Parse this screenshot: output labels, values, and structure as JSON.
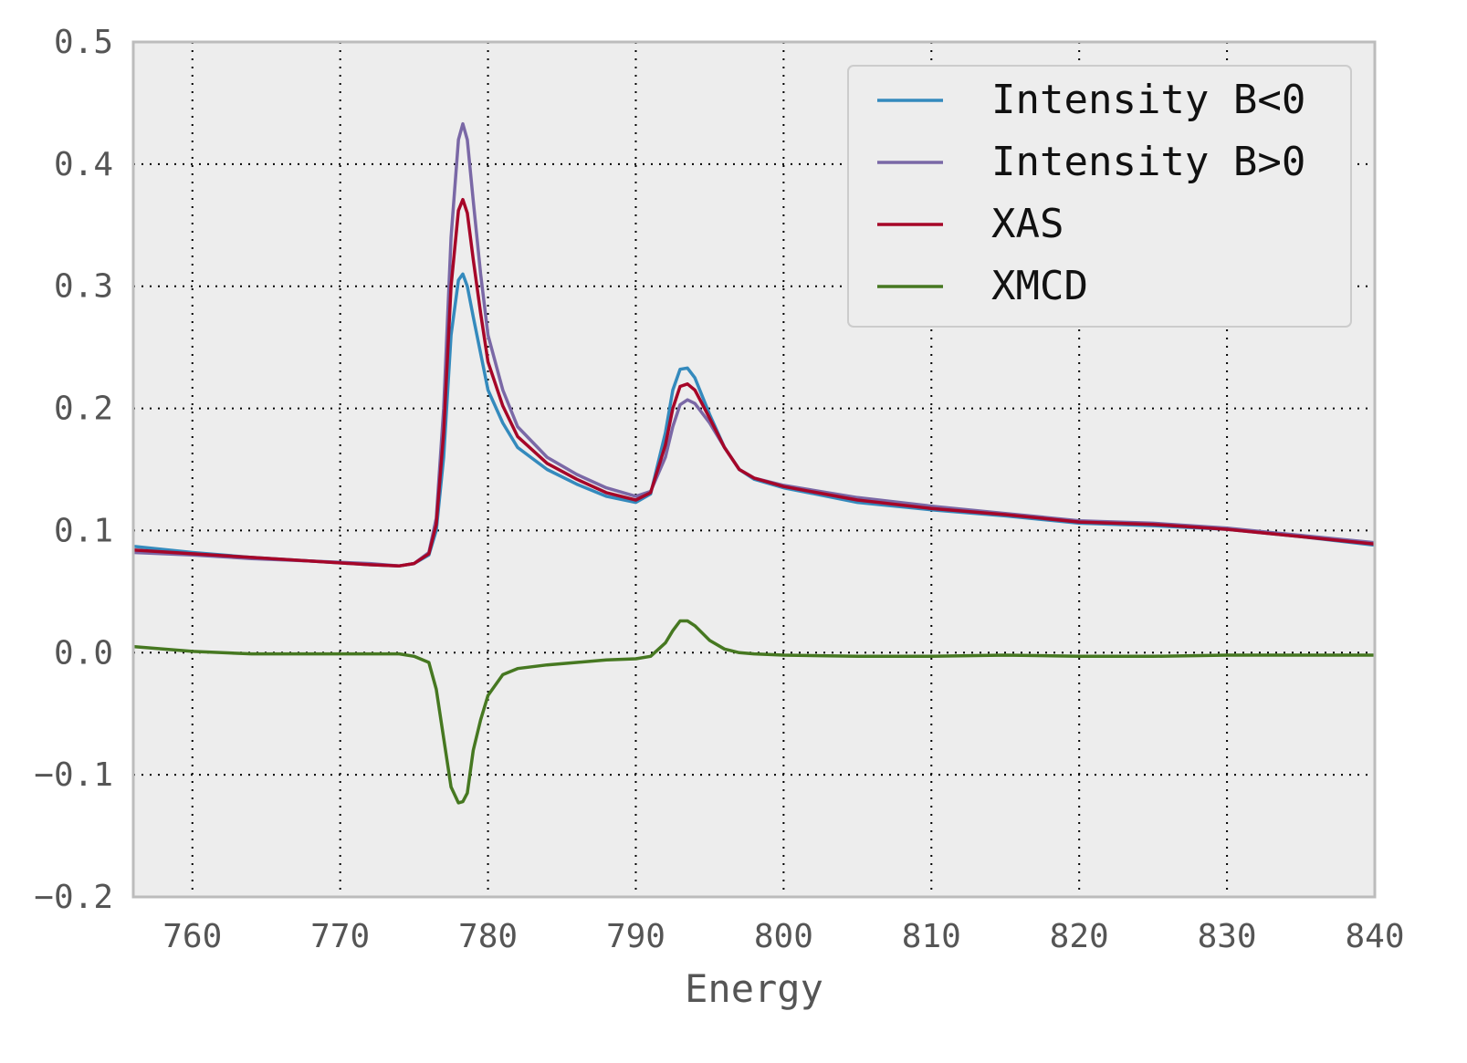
{
  "chart_data": {
    "type": "line",
    "title": "",
    "xlabel": "Energy",
    "ylabel": "",
    "xlim": [
      756,
      840
    ],
    "ylim": [
      -0.2,
      0.5
    ],
    "xticks": [
      760,
      770,
      780,
      790,
      800,
      810,
      820,
      830,
      840
    ],
    "yticks": [
      -0.2,
      -0.1,
      0.0,
      0.1,
      0.2,
      0.3,
      0.4,
      0.5
    ],
    "xtick_labels": [
      "760",
      "770",
      "780",
      "790",
      "800",
      "810",
      "820",
      "830",
      "840"
    ],
    "ytick_labels": [
      "−0.2",
      "−0.1",
      "0.0",
      "0.1",
      "0.2",
      "0.3",
      "0.4",
      "0.5"
    ],
    "grid": true,
    "legend_position": "top-right",
    "background": "#ededed",
    "x": [
      756,
      760,
      764,
      768,
      772,
      774,
      775,
      776,
      776.5,
      777,
      777.5,
      778,
      778.3,
      778.6,
      779,
      779.5,
      780,
      781,
      782,
      784,
      786,
      788,
      790,
      791,
      792,
      792.5,
      793,
      793.5,
      794,
      795,
      796,
      797,
      798,
      800,
      805,
      810,
      815,
      820,
      825,
      830,
      835,
      840
    ],
    "series": [
      {
        "name": "Intensity B<0",
        "color": "#348abd",
        "values": [
          0.087,
          0.082,
          0.078,
          0.075,
          0.072,
          0.071,
          0.073,
          0.08,
          0.1,
          0.16,
          0.26,
          0.305,
          0.31,
          0.3,
          0.275,
          0.245,
          0.215,
          0.188,
          0.168,
          0.15,
          0.138,
          0.128,
          0.123,
          0.13,
          0.18,
          0.215,
          0.232,
          0.233,
          0.225,
          0.195,
          0.168,
          0.15,
          0.142,
          0.135,
          0.123,
          0.117,
          0.112,
          0.106,
          0.104,
          0.101,
          0.095,
          0.088
        ]
      },
      {
        "name": "Intensity B>0",
        "color": "#7a68a6",
        "values": [
          0.082,
          0.08,
          0.077,
          0.075,
          0.073,
          0.071,
          0.073,
          0.082,
          0.11,
          0.2,
          0.34,
          0.42,
          0.433,
          0.42,
          0.37,
          0.31,
          0.26,
          0.215,
          0.185,
          0.16,
          0.146,
          0.135,
          0.128,
          0.132,
          0.16,
          0.185,
          0.203,
          0.207,
          0.204,
          0.188,
          0.168,
          0.15,
          0.143,
          0.137,
          0.127,
          0.12,
          0.114,
          0.108,
          0.106,
          0.102,
          0.096,
          0.09
        ]
      },
      {
        "name": "XAS",
        "color": "#a60628",
        "values": [
          0.084,
          0.081,
          0.078,
          0.075,
          0.072,
          0.071,
          0.073,
          0.081,
          0.105,
          0.18,
          0.3,
          0.362,
          0.371,
          0.36,
          0.322,
          0.278,
          0.238,
          0.202,
          0.177,
          0.155,
          0.142,
          0.131,
          0.125,
          0.131,
          0.17,
          0.2,
          0.218,
          0.22,
          0.215,
          0.192,
          0.168,
          0.15,
          0.143,
          0.136,
          0.125,
          0.118,
          0.113,
          0.107,
          0.105,
          0.101,
          0.095,
          0.089
        ]
      },
      {
        "name": "XMCD",
        "color": "#467821",
        "values": [
          0.005,
          0.001,
          -0.001,
          -0.001,
          -0.001,
          -0.001,
          -0.003,
          -0.008,
          -0.03,
          -0.07,
          -0.11,
          -0.123,
          -0.122,
          -0.115,
          -0.08,
          -0.055,
          -0.035,
          -0.018,
          -0.013,
          -0.01,
          -0.008,
          -0.006,
          -0.005,
          -0.003,
          0.008,
          0.018,
          0.026,
          0.026,
          0.022,
          0.01,
          0.003,
          0.0,
          -0.001,
          -0.002,
          -0.003,
          -0.003,
          -0.002,
          -0.003,
          -0.003,
          -0.002,
          -0.002,
          -0.002
        ]
      }
    ]
  }
}
